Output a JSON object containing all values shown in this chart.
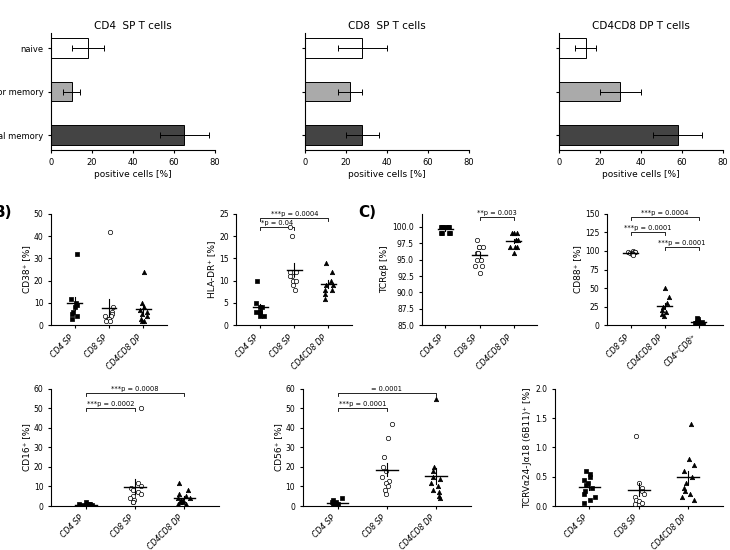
{
  "panel_A": {
    "titles": [
      "CD4  SP T cells",
      "CD8  SP T cells",
      "CD4CD8 DP T cells"
    ],
    "categories": [
      "naive",
      "effector memory",
      "central memory"
    ],
    "colors": [
      "white",
      "#aaaaaa",
      "#444444"
    ],
    "cd4_values": [
      18,
      10,
      65
    ],
    "cd4_errors": [
      8,
      4,
      12
    ],
    "cd8_values": [
      28,
      22,
      28
    ],
    "cd8_errors": [
      12,
      6,
      8
    ],
    "dp_values": [
      13,
      30,
      58
    ],
    "dp_errors": [
      5,
      10,
      12
    ],
    "xlabel": "positive cells [%]",
    "xlim": [
      0,
      80
    ]
  },
  "panel_B_CD38": {
    "title": "CD38⁺ [%]",
    "groups": [
      "CD4 SP",
      "CD8 SP",
      "CD4CD8 DP"
    ],
    "cd4_sp": [
      32,
      12,
      10,
      9,
      8,
      6,
      5,
      4,
      3
    ],
    "cd8_sp": [
      42,
      8,
      6,
      5,
      4,
      4,
      3,
      3,
      2,
      2
    ],
    "cd4cd8_dp": [
      24,
      10,
      8,
      7,
      6,
      5,
      4,
      3,
      2,
      2
    ],
    "ylim": [
      0,
      50
    ]
  },
  "panel_B_HLA": {
    "title": "HLA-DR⁺ [%]",
    "groups": [
      "CD4 SP",
      "CD8 SP",
      "CD4CD8 DP"
    ],
    "cd4_sp": [
      10,
      5,
      4,
      4,
      3,
      3,
      3,
      2,
      2
    ],
    "cd8_sp": [
      22,
      20,
      12,
      12,
      11,
      11,
      10,
      10,
      9,
      8
    ],
    "cd4cd8_dp": [
      14,
      12,
      10,
      9,
      9,
      8,
      8,
      7,
      6
    ],
    "ylim": [
      0,
      25
    ],
    "sig_CD4_CD8_y": 22,
    "sig_CD4_CD8_text": "*p = 0.04",
    "sig_CD4_DP_y": 24,
    "sig_CD4_DP_text": "***p = 0.0004"
  },
  "panel_C_TCR": {
    "title": "TCRαβ [%]",
    "groups": [
      "CD4 SP",
      "CD8 SP",
      "CD4CD8 DP"
    ],
    "cd4_sp": [
      100,
      100,
      100,
      100,
      100,
      100,
      99,
      99,
      99,
      99
    ],
    "cd8_sp": [
      98,
      97,
      97,
      97,
      96,
      96,
      96,
      95,
      95,
      94,
      94,
      93
    ],
    "cd4cd8_dp": [
      99,
      99,
      99,
      98,
      98,
      98,
      97,
      97,
      97,
      96
    ],
    "ylim": [
      85,
      102
    ],
    "sig_text": "**p = 0.003",
    "sig_y": 101.5
  },
  "panel_C_CD88": {
    "title": "CD88⁺ [%]",
    "groups": [
      "CD8 SP",
      "CD4CD8 DP",
      "CD4ʰʳCD8ˡᵒ"
    ],
    "cd8_sp": [
      100,
      99,
      99,
      98,
      98,
      97,
      97,
      96,
      96,
      95
    ],
    "cd4cd8_dp": [
      50,
      38,
      30,
      25,
      20,
      18,
      15,
      12
    ],
    "cd4hicd8lo": [
      10,
      8,
      6,
      5,
      4,
      3,
      3,
      2,
      2,
      1
    ],
    "ylim": [
      0,
      150
    ],
    "sig_CD8_DP_y": 125,
    "sig_CD8_DP_text": "***p = 0.0001",
    "sig_CD8_lo_y": 145,
    "sig_CD8_lo_text": "***p = 0.0004",
    "sig_DP_lo_y": 105,
    "sig_DP_lo_text": "***p = 0.0001"
  },
  "panel_D_CD16": {
    "title": "CD16⁺ [%]",
    "groups": [
      "CD4 SP",
      "CD8 SP",
      "CD4CD8 DP"
    ],
    "cd4_sp": [
      2,
      1,
      1,
      1,
      0.5,
      0.5,
      0.3,
      0.2,
      0.1,
      0.1
    ],
    "cd8_sp": [
      50,
      12,
      10,
      9,
      8,
      7,
      6,
      5,
      4,
      3,
      2,
      2
    ],
    "cd4cd8_dp": [
      12,
      8,
      6,
      5,
      4,
      4,
      3,
      3,
      2,
      2,
      1,
      1
    ],
    "ylim": [
      0,
      60
    ],
    "sig_CD4_CD8_y": 50,
    "sig_CD4_CD8_text": "***p = 0.0002",
    "sig_CD4_DP_y": 58,
    "sig_CD4_DP_text": "***p = 0.0008"
  },
  "panel_D_CD56": {
    "title": "CD56⁺ [%]",
    "groups": [
      "CD4 SP",
      "CD8 SP",
      "CD4CD8 DP"
    ],
    "cd4_sp": [
      4,
      3,
      2,
      2,
      1,
      1,
      0.5,
      0.5,
      0.3,
      0.2
    ],
    "cd8_sp": [
      42,
      35,
      25,
      20,
      18,
      15,
      13,
      12,
      10,
      8,
      6
    ],
    "cd4cd8_dp": [
      55,
      20,
      18,
      15,
      14,
      12,
      10,
      8,
      7,
      5,
      4
    ],
    "ylim": [
      0,
      60
    ],
    "sig_CD4_CD8_y": 50,
    "sig_CD4_CD8_text": "***p = 0.0001",
    "sig_CD4_DP_y": 58,
    "sig_CD4_DP_text": "= 0.0001"
  },
  "panel_D_TCRVa": {
    "title": "TCRVα24-Jα18 (6B11)⁺ [%]",
    "groups": [
      "CD4 SP",
      "CD8 SP",
      "CD4CD8 DP"
    ],
    "cd4_sp": [
      0.6,
      0.55,
      0.5,
      0.45,
      0.4,
      0.35,
      0.3,
      0.25,
      0.2,
      0.15,
      0.1,
      0.05
    ],
    "cd8_sp": [
      1.2,
      0.4,
      0.3,
      0.25,
      0.2,
      0.15,
      0.1,
      0.08,
      0.05,
      0.03
    ],
    "cd4cd8_dp": [
      1.4,
      0.8,
      0.7,
      0.6,
      0.5,
      0.4,
      0.3,
      0.25,
      0.2,
      0.15,
      0.1
    ],
    "ylim": [
      0,
      2.0
    ]
  }
}
